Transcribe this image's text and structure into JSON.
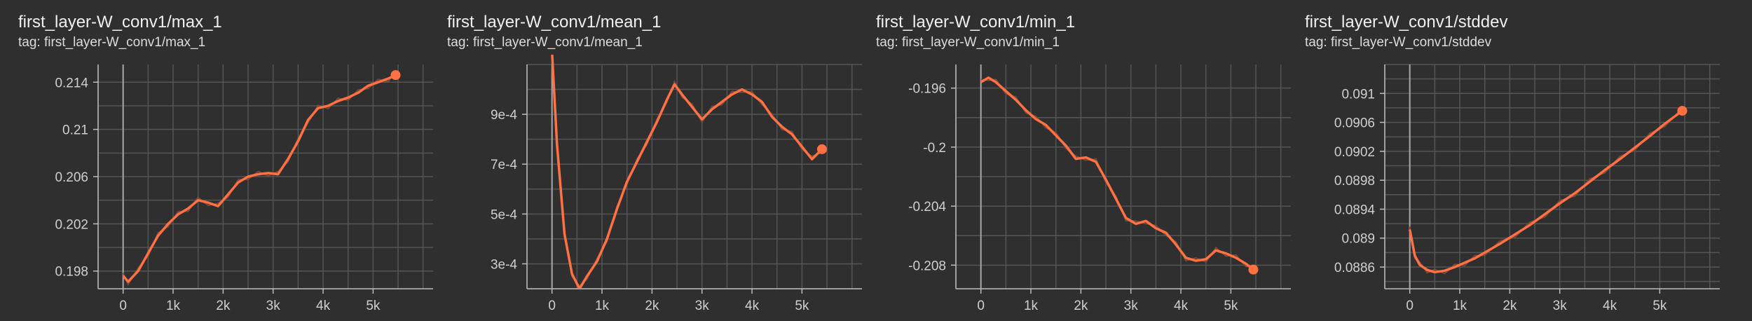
{
  "colors": {
    "background": "#2f2f2f",
    "grid": "#555555",
    "axis": "#bdbdbd",
    "series": "#ff7043",
    "raw_series": "#7a4a3a",
    "text": "#e8e8e8"
  },
  "chart_data": [
    {
      "type": "line",
      "title": "first_layer-W_conv1/max_1",
      "tag": "tag: first_layer-W_conv1/max_1",
      "xlabel": "",
      "ylabel": "",
      "grid": true,
      "xlim": [
        -500,
        6200
      ],
      "ylim": [
        0.1965,
        0.2155
      ],
      "x_ticks": [
        0,
        1000,
        2000,
        3000,
        4000,
        5000
      ],
      "x_tick_labels": [
        "0",
        "1k",
        "2k",
        "3k",
        "4k",
        "5k"
      ],
      "y_ticks": [
        0.198,
        0.202,
        0.206,
        0.21,
        0.214
      ],
      "y_tick_labels": [
        "0.198",
        "0.202",
        "0.206",
        "0.21",
        "0.214"
      ],
      "series": [
        {
          "x": [
            0,
            100,
            300,
            500,
            700,
            900,
            1100,
            1300,
            1500,
            1700,
            1900,
            2100,
            2300,
            2500,
            2700,
            2900,
            3100,
            3300,
            3500,
            3700,
            3900,
            4100,
            4300,
            4500,
            4700,
            4900,
            5100,
            5300,
            5450
          ],
          "values": [
            0.1976,
            0.1971,
            0.198,
            0.1995,
            0.201,
            0.202,
            0.2028,
            0.2033,
            0.204,
            0.2038,
            0.2035,
            0.2045,
            0.2055,
            0.206,
            0.2062,
            0.2063,
            0.2062,
            0.2075,
            0.209,
            0.2108,
            0.2118,
            0.212,
            0.2124,
            0.2127,
            0.2131,
            0.2137,
            0.214,
            0.2143,
            0.2146
          ]
        }
      ]
    },
    {
      "type": "line",
      "title": "first_layer-W_conv1/mean_1",
      "tag": "tag: first_layer-W_conv1/mean_1",
      "xlabel": "",
      "ylabel": "",
      "grid": true,
      "xlim": [
        -500,
        6200
      ],
      "ylim": [
        0.0002,
        0.0011
      ],
      "x_ticks": [
        0,
        1000,
        2000,
        3000,
        4000,
        5000
      ],
      "x_tick_labels": [
        "0",
        "1k",
        "2k",
        "3k",
        "4k",
        "5k"
      ],
      "y_ticks": [
        0.0003,
        0.0005,
        0.0007,
        0.0009
      ],
      "y_tick_labels": [
        "3e-4",
        "5e-4",
        "7e-4",
        "9e-4"
      ],
      "series": [
        {
          "x": [
            0,
            100,
            250,
            400,
            550,
            700,
            900,
            1100,
            1300,
            1500,
            1700,
            1900,
            2100,
            2300,
            2450,
            2600,
            2800,
            3000,
            3200,
            3400,
            3600,
            3800,
            4000,
            4200,
            4400,
            4600,
            4800,
            5000,
            5200,
            5400
          ],
          "values": [
            0.00115,
            0.00078,
            0.00042,
            0.00026,
            0.0002,
            0.00025,
            0.00031,
            0.0004,
            0.00052,
            0.00063,
            0.00071,
            0.00079,
            0.00087,
            0.00096,
            0.00102,
            0.00098,
            0.00093,
            0.00088,
            0.00092,
            0.00095,
            0.00098,
            0.001,
            0.00098,
            0.00095,
            0.00089,
            0.00085,
            0.00082,
            0.00077,
            0.00072,
            0.00076
          ]
        }
      ]
    },
    {
      "type": "line",
      "title": "first_layer-W_conv1/min_1",
      "tag": "tag: first_layer-W_conv1/min_1",
      "xlabel": "",
      "ylabel": "",
      "grid": true,
      "xlim": [
        -500,
        6200
      ],
      "ylim": [
        -0.2096,
        -0.1944
      ],
      "x_ticks": [
        0,
        1000,
        2000,
        3000,
        4000,
        5000
      ],
      "x_tick_labels": [
        "0",
        "1k",
        "2k",
        "3k",
        "4k",
        "5k"
      ],
      "y_ticks": [
        -0.208,
        -0.204,
        -0.2,
        -0.196
      ],
      "y_tick_labels": [
        "-0.208",
        "-0.204",
        "-0.2",
        "-0.196"
      ],
      "series": [
        {
          "x": [
            0,
            150,
            300,
            500,
            700,
            900,
            1100,
            1300,
            1500,
            1700,
            1900,
            2100,
            2300,
            2500,
            2700,
            2900,
            3100,
            3300,
            3500,
            3700,
            3900,
            4100,
            4300,
            4500,
            4700,
            4900,
            5100,
            5300,
            5450
          ],
          "values": [
            -0.1956,
            -0.1953,
            -0.1956,
            -0.1962,
            -0.1968,
            -0.1975,
            -0.1981,
            -0.1985,
            -0.1992,
            -0.1999,
            -0.2008,
            -0.2007,
            -0.201,
            -0.2022,
            -0.2035,
            -0.2048,
            -0.2052,
            -0.205,
            -0.2055,
            -0.2058,
            -0.2066,
            -0.2075,
            -0.2077,
            -0.2076,
            -0.207,
            -0.2072,
            -0.2075,
            -0.2079,
            -0.2083
          ]
        }
      ]
    },
    {
      "type": "line",
      "title": "first_layer-W_conv1/stddev",
      "tag": "tag: first_layer-W_conv1/stddev",
      "xlabel": "",
      "ylabel": "",
      "grid": true,
      "xlim": [
        -500,
        6200
      ],
      "ylim": [
        0.0883,
        0.0914
      ],
      "x_ticks": [
        0,
        1000,
        2000,
        3000,
        4000,
        5000
      ],
      "x_tick_labels": [
        "0",
        "1k",
        "2k",
        "3k",
        "4k",
        "5k"
      ],
      "y_ticks": [
        0.0886,
        0.089,
        0.0894,
        0.0898,
        0.0902,
        0.0906,
        0.091
      ],
      "y_tick_labels": [
        "0.0886",
        "0.089",
        "0.0894",
        "0.0898",
        "0.0902",
        "0.0906",
        "0.091"
      ],
      "series": [
        {
          "x": [
            0,
            100,
            200,
            350,
            500,
            700,
            900,
            1100,
            1300,
            1500,
            1800,
            2100,
            2400,
            2700,
            3000,
            3300,
            3600,
            3900,
            4200,
            4500,
            4800,
            5100,
            5450
          ],
          "values": [
            0.08912,
            0.08876,
            0.08863,
            0.08856,
            0.08853,
            0.08855,
            0.0886,
            0.08866,
            0.08872,
            0.0888,
            0.08892,
            0.08905,
            0.08918,
            0.08933,
            0.08948,
            0.08962,
            0.08978,
            0.08994,
            0.09009,
            0.09025,
            0.09041,
            0.09058,
            0.09076
          ]
        }
      ]
    }
  ]
}
